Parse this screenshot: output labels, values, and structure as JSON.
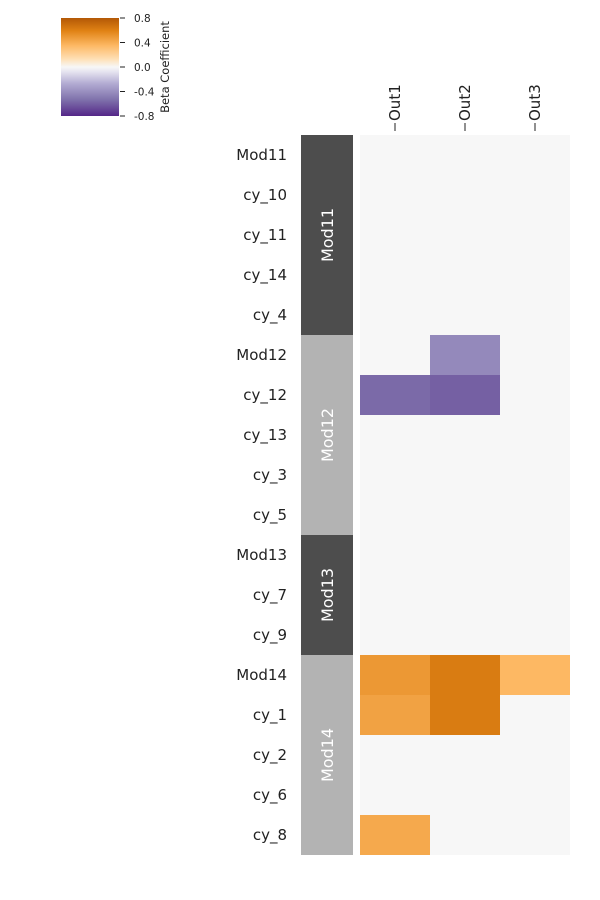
{
  "chart_data": {
    "type": "heatmap",
    "columns": [
      "Out1",
      "Out2",
      "Out3"
    ],
    "rows": [
      "Mod11",
      "cy_10",
      "cy_11",
      "cy_14",
      "cy_4",
      "Mod12",
      "cy_12",
      "cy_13",
      "cy_3",
      "cy_5",
      "Mod13",
      "cy_7",
      "cy_9",
      "Mod14",
      "cy_1",
      "cy_2",
      "cy_6",
      "cy_8"
    ],
    "modules": [
      {
        "name": "Mod11",
        "start": 0,
        "count": 5,
        "color": "#4d4d4d"
      },
      {
        "name": "Mod12",
        "start": 5,
        "count": 5,
        "color": "#b3b3b3"
      },
      {
        "name": "Mod13",
        "start": 10,
        "count": 3,
        "color": "#4d4d4d"
      },
      {
        "name": "Mod14",
        "start": 13,
        "count": 5,
        "color": "#b3b3b3"
      }
    ],
    "values": [
      [
        0,
        0,
        0
      ],
      [
        0,
        0,
        0
      ],
      [
        0,
        0,
        0
      ],
      [
        0,
        0,
        0
      ],
      [
        0,
        0,
        0
      ],
      [
        0,
        -0.3,
        0
      ],
      [
        -0.45,
        -0.5,
        0
      ],
      [
        0,
        0,
        0
      ],
      [
        0,
        0,
        0
      ],
      [
        0,
        0,
        0
      ],
      [
        0,
        0,
        0
      ],
      [
        0,
        0,
        0
      ],
      [
        0,
        0,
        0
      ],
      [
        0.5,
        0.63,
        0.35
      ],
      [
        0.45,
        0.63,
        0
      ],
      [
        0,
        0,
        0
      ],
      [
        0,
        0,
        0
      ],
      [
        0.42,
        0,
        0
      ]
    ],
    "colorbar": {
      "label": "Beta Coefficient",
      "range": [
        -0.8,
        0.8
      ],
      "ticks": [
        "0.8",
        "0.4",
        "0.0",
        "-0.4",
        "-0.8"
      ],
      "colormap": "PuOr_r",
      "position": "top-left"
    },
    "background_color": "#f7f7f7"
  }
}
